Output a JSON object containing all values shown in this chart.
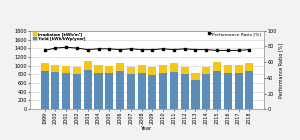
{
  "years": [
    "1999",
    "2000",
    "2001",
    "2002",
    "2003",
    "2004",
    "2005",
    "2006",
    "2007",
    "2008",
    "2009",
    "2010",
    "2011",
    "2012",
    "2013",
    "2014",
    "2015",
    "2016",
    "2017",
    "2018"
  ],
  "irradiation": [
    1050,
    1020,
    990,
    960,
    1100,
    1010,
    1000,
    1060,
    980,
    1020,
    960,
    1020,
    1050,
    970,
    830,
    980,
    1080,
    1020,
    1020,
    1060
  ],
  "yield_vals": [
    870,
    860,
    840,
    800,
    900,
    840,
    830,
    870,
    810,
    840,
    790,
    840,
    860,
    800,
    680,
    800,
    880,
    830,
    830,
    870
  ],
  "performance_ratio": [
    75,
    78,
    79,
    78,
    76,
    77,
    77,
    76,
    77,
    76,
    76,
    77,
    76,
    77,
    76,
    76,
    75,
    75,
    75,
    76
  ],
  "bar_color_blue": "#5B8DB8",
  "bar_color_yellow": "#F5C518",
  "line_color": "#000000",
  "bg_color": "#FFFFFF",
  "outer_bg": "#F2F2F2",
  "legend_irr": "Irradiation [kWh/m²]",
  "legend_yield": "Yield [kWh/kWp/year]",
  "legend_pr": "Performance Ratio [%]",
  "ylabel_right": "Performance Ratio [%]",
  "xlabel": "Year",
  "ylim_left": [
    0,
    1800
  ],
  "ylim_right": [
    0,
    100
  ],
  "yticks_left": [
    0,
    200,
    400,
    600,
    800,
    1000,
    1200,
    1400,
    1600,
    1800
  ],
  "yticks_right": [
    0,
    20,
    40,
    60,
    80,
    100
  ],
  "tick_fontsize": 3.5,
  "legend_fontsize": 3.2,
  "axis_label_fontsize": 3.8,
  "pr_label_fontsize": 3.5
}
